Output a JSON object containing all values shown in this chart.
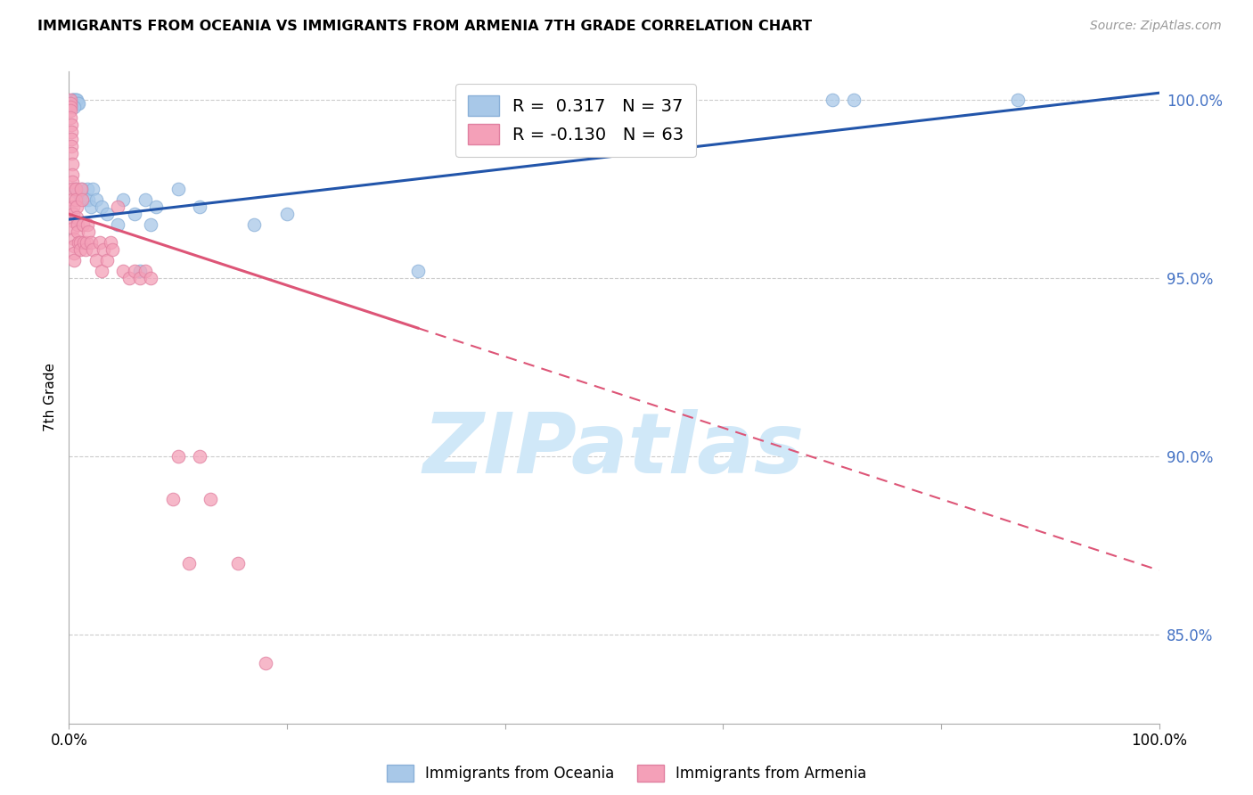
{
  "title": "IMMIGRANTS FROM OCEANIA VS IMMIGRANTS FROM ARMENIA 7TH GRADE CORRELATION CHART",
  "source": "Source: ZipAtlas.com",
  "ylabel": "7th Grade",
  "xlim": [
    0.0,
    1.0
  ],
  "ylim": [
    0.825,
    1.008
  ],
  "y_tick_values": [
    0.85,
    0.9,
    0.95,
    1.0
  ],
  "y_tick_labels": [
    "85.0%",
    "90.0%",
    "95.0%",
    "100.0%"
  ],
  "x_tick_positions": [
    0.0,
    0.2,
    0.4,
    0.6,
    0.8,
    1.0
  ],
  "x_tick_labels": [
    "0.0%",
    "",
    "",
    "",
    "",
    "100.0%"
  ],
  "legend_R_oceania": " 0.317",
  "legend_N_oceania": "37",
  "legend_R_armenia": "-0.130",
  "legend_N_armenia": "63",
  "oceania_color": "#a8c8e8",
  "armenia_color": "#f4a0b8",
  "trendline_oceania_color": "#2255aa",
  "trendline_armenia_solid_color": "#dd5577",
  "trendline_armenia_dashed_color": "#dd5577",
  "watermark": "ZIPatlas",
  "watermark_color": "#d0e8f8",
  "grid_color": "#cccccc",
  "oceania_scatter": [
    [
      0.003,
      1.0
    ],
    [
      0.004,
      1.0
    ],
    [
      0.004,
      1.0
    ],
    [
      0.005,
      1.0
    ],
    [
      0.006,
      1.0
    ],
    [
      0.006,
      1.0
    ],
    [
      0.007,
      1.0
    ],
    [
      0.008,
      0.999
    ],
    [
      0.009,
      0.999
    ],
    [
      0.005,
      0.998
    ],
    [
      0.006,
      0.975
    ],
    [
      0.008,
      0.974
    ],
    [
      0.01,
      0.973
    ],
    [
      0.012,
      0.975
    ],
    [
      0.015,
      0.972
    ],
    [
      0.017,
      0.975
    ],
    [
      0.018,
      0.972
    ],
    [
      0.02,
      0.97
    ],
    [
      0.022,
      0.975
    ],
    [
      0.025,
      0.972
    ],
    [
      0.03,
      0.97
    ],
    [
      0.035,
      0.968
    ],
    [
      0.045,
      0.965
    ],
    [
      0.05,
      0.972
    ],
    [
      0.06,
      0.968
    ],
    [
      0.065,
      0.952
    ],
    [
      0.07,
      0.972
    ],
    [
      0.075,
      0.965
    ],
    [
      0.08,
      0.97
    ],
    [
      0.1,
      0.975
    ],
    [
      0.12,
      0.97
    ],
    [
      0.17,
      0.965
    ],
    [
      0.2,
      0.968
    ],
    [
      0.32,
      0.952
    ],
    [
      0.7,
      1.0
    ],
    [
      0.72,
      1.0
    ],
    [
      0.87,
      1.0
    ]
  ],
  "armenia_scatter": [
    [
      0.001,
      1.0
    ],
    [
      0.001,
      0.999
    ],
    [
      0.001,
      0.998
    ],
    [
      0.001,
      0.997
    ],
    [
      0.001,
      0.995
    ],
    [
      0.002,
      0.993
    ],
    [
      0.002,
      0.991
    ],
    [
      0.002,
      0.989
    ],
    [
      0.002,
      0.987
    ],
    [
      0.002,
      0.985
    ],
    [
      0.003,
      0.982
    ],
    [
      0.003,
      0.979
    ],
    [
      0.003,
      0.977
    ],
    [
      0.003,
      0.975
    ],
    [
      0.003,
      0.972
    ],
    [
      0.004,
      0.97
    ],
    [
      0.004,
      0.968
    ],
    [
      0.004,
      0.966
    ],
    [
      0.004,
      0.964
    ],
    [
      0.005,
      0.961
    ],
    [
      0.005,
      0.959
    ],
    [
      0.005,
      0.957
    ],
    [
      0.005,
      0.955
    ],
    [
      0.006,
      0.975
    ],
    [
      0.006,
      0.972
    ],
    [
      0.007,
      0.97
    ],
    [
      0.007,
      0.967
    ],
    [
      0.008,
      0.965
    ],
    [
      0.008,
      0.963
    ],
    [
      0.009,
      0.96
    ],
    [
      0.01,
      0.96
    ],
    [
      0.01,
      0.958
    ],
    [
      0.011,
      0.975
    ],
    [
      0.012,
      0.972
    ],
    [
      0.013,
      0.965
    ],
    [
      0.014,
      0.96
    ],
    [
      0.015,
      0.958
    ],
    [
      0.016,
      0.96
    ],
    [
      0.017,
      0.965
    ],
    [
      0.018,
      0.963
    ],
    [
      0.02,
      0.96
    ],
    [
      0.022,
      0.958
    ],
    [
      0.025,
      0.955
    ],
    [
      0.028,
      0.96
    ],
    [
      0.03,
      0.952
    ],
    [
      0.032,
      0.958
    ],
    [
      0.035,
      0.955
    ],
    [
      0.038,
      0.96
    ],
    [
      0.04,
      0.958
    ],
    [
      0.045,
      0.97
    ],
    [
      0.05,
      0.952
    ],
    [
      0.055,
      0.95
    ],
    [
      0.06,
      0.952
    ],
    [
      0.065,
      0.95
    ],
    [
      0.07,
      0.952
    ],
    [
      0.075,
      0.95
    ],
    [
      0.1,
      0.9
    ],
    [
      0.12,
      0.9
    ],
    [
      0.13,
      0.888
    ],
    [
      0.155,
      0.87
    ],
    [
      0.18,
      0.842
    ],
    [
      0.095,
      0.888
    ],
    [
      0.11,
      0.87
    ]
  ],
  "trendline_oceania": [
    [
      0.0,
      0.9665
    ],
    [
      1.0,
      1.002
    ]
  ],
  "trendline_armenia_solid": [
    [
      0.0,
      0.968
    ],
    [
      0.32,
      0.936
    ]
  ],
  "trendline_armenia_dashed": [
    [
      0.32,
      0.936
    ],
    [
      1.0,
      0.868
    ]
  ]
}
